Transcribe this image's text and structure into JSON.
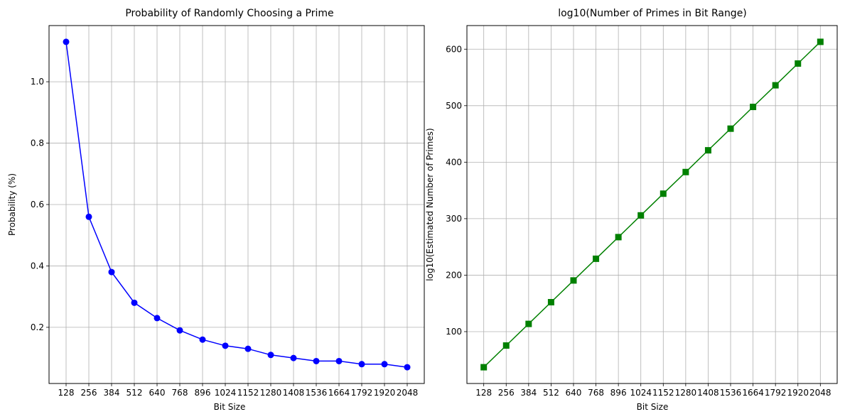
{
  "chart_data": [
    {
      "type": "line",
      "title": "Probability of Randomly Choosing a Prime",
      "xlabel": "Bit Size",
      "ylabel": "Probability (%)",
      "x": [
        128,
        256,
        384,
        512,
        640,
        768,
        896,
        1024,
        1152,
        1280,
        1408,
        1536,
        1664,
        1792,
        1920,
        2048
      ],
      "xtick_labels": [
        "128",
        "256",
        "384",
        "512",
        "640",
        "768",
        "896",
        "1024",
        "1152",
        "1280",
        "1408",
        "1536",
        "1664",
        "1792",
        "1920",
        "2048"
      ],
      "series": [
        {
          "values": [
            1.13,
            0.56,
            0.38,
            0.28,
            0.23,
            0.19,
            0.16,
            0.14,
            0.13,
            0.11,
            0.1,
            0.09,
            0.09,
            0.08,
            0.08,
            0.07
          ]
        }
      ],
      "yticks": [
        0.2,
        0.4,
        0.6,
        0.8,
        1.0
      ],
      "ytick_labels": [
        "0.2",
        "0.4",
        "0.6",
        "0.8",
        "1.0"
      ],
      "xlim": [
        32,
        2144
      ],
      "ylim": [
        0.017,
        1.183
      ],
      "grid": true,
      "color": "#0000ff",
      "marker": "circle"
    },
    {
      "type": "line",
      "title": "log10(Number of Primes in Bit Range)",
      "xlabel": "Bit Size",
      "ylabel": "log10(Estimated Number of Primes)",
      "x": [
        128,
        256,
        384,
        512,
        640,
        768,
        896,
        1024,
        1152,
        1280,
        1408,
        1536,
        1664,
        1792,
        1920,
        2048
      ],
      "xtick_labels": [
        "128",
        "256",
        "384",
        "512",
        "640",
        "768",
        "896",
        "1024",
        "1152",
        "1280",
        "1408",
        "1536",
        "1664",
        "1792",
        "1920",
        "2048"
      ],
      "series": [
        {
          "values": [
            37,
            75.4,
            113.7,
            152.1,
            190.6,
            229.0,
            267.3,
            305.8,
            344.2,
            382.5,
            421.0,
            459.3,
            497.8,
            536.1,
            574.6,
            613.0
          ]
        }
      ],
      "yticks": [
        100,
        200,
        300,
        400,
        500,
        600
      ],
      "ytick_labels": [
        "100",
        "200",
        "300",
        "400",
        "500",
        "600"
      ],
      "xlim": [
        32,
        2144
      ],
      "ylim": [
        8.2,
        641.8
      ],
      "grid": true,
      "color": "#008000",
      "marker": "square"
    }
  ]
}
